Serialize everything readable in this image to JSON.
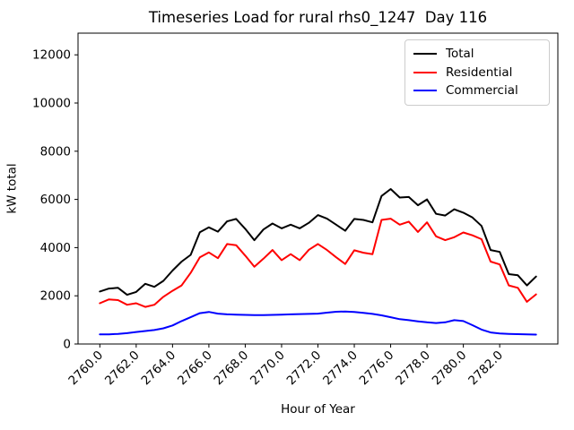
{
  "chart_data": {
    "type": "line",
    "title": "Timeseries Load for rural rhs0_1247  Day 116",
    "xlabel": "Hour of Year",
    "ylabel": "kW total",
    "grid": false,
    "legend_position": "upper right",
    "xlim": [
      2758.8,
      2785.2
    ],
    "ylim": [
      0,
      12900
    ],
    "x_tick_values": [
      2760,
      2762,
      2764,
      2766,
      2768,
      2770,
      2772,
      2774,
      2776,
      2778,
      2780,
      2782
    ],
    "x_ticks": [
      "2760.0",
      "2762.0",
      "2764.0",
      "2766.0",
      "2768.0",
      "2770.0",
      "2772.0",
      "2774.0",
      "2776.0",
      "2778.0",
      "2780.0",
      "2782.0"
    ],
    "y_tick_values": [
      0,
      2000,
      4000,
      6000,
      8000,
      10000,
      12000
    ],
    "y_ticks": [
      "0",
      "2000",
      "4000",
      "6000",
      "8000",
      "10000",
      "12000"
    ],
    "x": [
      2760.0,
      2760.5,
      2761.0,
      2761.5,
      2762.0,
      2762.5,
      2763.0,
      2763.5,
      2764.0,
      2764.5,
      2765.0,
      2765.5,
      2766.0,
      2766.5,
      2767.0,
      2767.5,
      2768.0,
      2768.5,
      2769.0,
      2769.5,
      2770.0,
      2770.5,
      2771.0,
      2771.5,
      2772.0,
      2772.5,
      2773.0,
      2773.5,
      2774.0,
      2774.5,
      2775.0,
      2775.5,
      2776.0,
      2776.5,
      2777.0,
      2777.5,
      2778.0,
      2778.5,
      2779.0,
      2779.5,
      2780.0,
      2780.5,
      2781.0,
      2781.5,
      2782.0,
      2782.5,
      2783.0,
      2783.5,
      2784.0
    ],
    "series": [
      {
        "name": "Total",
        "color": "#000000",
        "values": [
          2180,
          2300,
          2330,
          2040,
          2160,
          2500,
          2370,
          2620,
          3050,
          3420,
          3700,
          4640,
          4840,
          4660,
          5090,
          5190,
          4780,
          4310,
          4750,
          5000,
          4800,
          4950,
          4800,
          5030,
          5350,
          5200,
          4950,
          4700,
          5190,
          5150,
          5050,
          6140,
          6430,
          6080,
          6100,
          5760,
          6000,
          5400,
          5330,
          5590,
          5450,
          5250,
          4900,
          3900,
          3820,
          2900,
          2850,
          2430,
          2800
        ]
      },
      {
        "name": "Residential",
        "color": "#ff0000",
        "values": [
          1690,
          1850,
          1820,
          1630,
          1690,
          1540,
          1630,
          1960,
          2210,
          2430,
          2950,
          3600,
          3800,
          3560,
          4150,
          4100,
          3670,
          3210,
          3540,
          3900,
          3480,
          3730,
          3480,
          3910,
          4150,
          3900,
          3600,
          3320,
          3890,
          3790,
          3730,
          5150,
          5200,
          4950,
          5080,
          4650,
          5050,
          4470,
          4310,
          4430,
          4630,
          4510,
          4350,
          3420,
          3300,
          2430,
          2330,
          1750,
          2060
        ]
      },
      {
        "name": "Commercial",
        "color": "#0000ff",
        "values": [
          400,
          400,
          420,
          450,
          500,
          540,
          580,
          650,
          770,
          950,
          1110,
          1280,
          1330,
          1260,
          1230,
          1220,
          1210,
          1200,
          1200,
          1210,
          1220,
          1230,
          1240,
          1250,
          1260,
          1300,
          1340,
          1350,
          1330,
          1290,
          1250,
          1190,
          1110,
          1030,
          990,
          940,
          900,
          870,
          900,
          990,
          950,
          780,
          600,
          480,
          440,
          420,
          410,
          400,
          390
        ]
      }
    ]
  }
}
